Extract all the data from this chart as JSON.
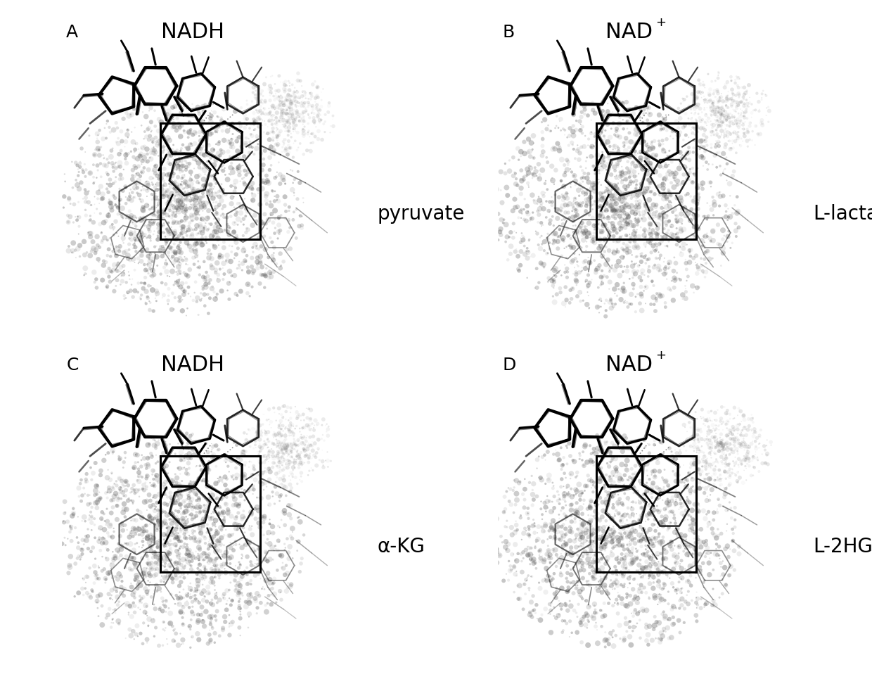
{
  "panels": [
    {
      "label": "A",
      "title": "NADH",
      "subtitle": "pyruvate",
      "title_super": null,
      "row": 0,
      "col": 0
    },
    {
      "label": "B",
      "title": "NAD",
      "subtitle": "L-lactate",
      "title_super": "+",
      "row": 0,
      "col": 1
    },
    {
      "label": "C",
      "title": "NADH",
      "subtitle": "α-KG",
      "title_super": null,
      "row": 1,
      "col": 0
    },
    {
      "label": "D",
      "title": "NAD",
      "subtitle": "L-2HG",
      "title_super": "+",
      "row": 1,
      "col": 1
    }
  ],
  "bg_color": "#ffffff",
  "fig_width": 12.4,
  "fig_height": 9.65,
  "panel_label_fontsize": 18,
  "title_fontsize": 22,
  "subtitle_fontsize": 20,
  "super_fontsize": 13
}
